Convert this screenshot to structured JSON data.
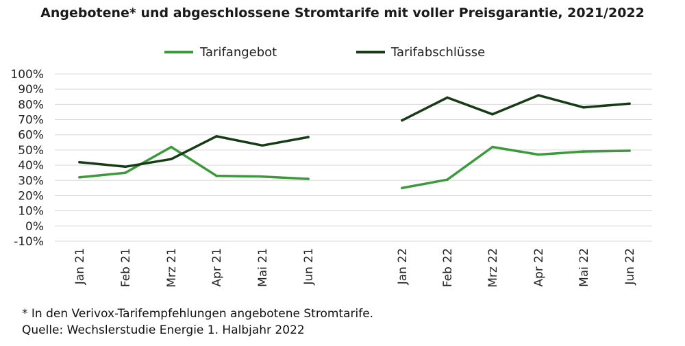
{
  "chart_data": {
    "type": "line",
    "title": "Angebotene* und abgeschlossene Stromtarife mit voller Preisgarantie, 2021/2022",
    "xlabel": "",
    "ylabel": "",
    "categories": [
      "Jan 21",
      "Feb 21",
      "Mrz 21",
      "Apr 21",
      "Mai 21",
      "Jun 21",
      "Jan 22",
      "Feb 22",
      "Mrz 22",
      "Apr 22",
      "Mai 22",
      "Jun 22"
    ],
    "category_groups": [
      [
        0,
        1,
        2,
        3,
        4,
        5
      ],
      [
        6,
        7,
        8,
        9,
        10,
        11
      ]
    ],
    "y_ticks": [
      "100%",
      "90%",
      "80%",
      "70%",
      "60%",
      "50%",
      "40%",
      "30%",
      "20%",
      "10%",
      "0%",
      "-10%"
    ],
    "ylim": [
      -10,
      100
    ],
    "y_unit": "%",
    "grid": true,
    "legend_position": "top-center",
    "series": [
      {
        "name": "Tarifangebot",
        "color": "#3c9a3c",
        "values": [
          32,
          35,
          52,
          33,
          32.5,
          31,
          25,
          30.5,
          52,
          47,
          49,
          49.5
        ]
      },
      {
        "name": "Tarifabschlüsse",
        "color": "#173a17",
        "values": [
          42,
          39,
          44,
          59,
          53,
          58.5,
          69.5,
          84.5,
          73.5,
          86,
          78,
          80.5
        ]
      }
    ]
  },
  "footnote": {
    "line1": "* In den Verivox-Tarifempfehlungen angebotene Stromtarife.",
    "line2": "Quelle: Wechslerstudie Energie 1. Halbjahr 2022"
  }
}
